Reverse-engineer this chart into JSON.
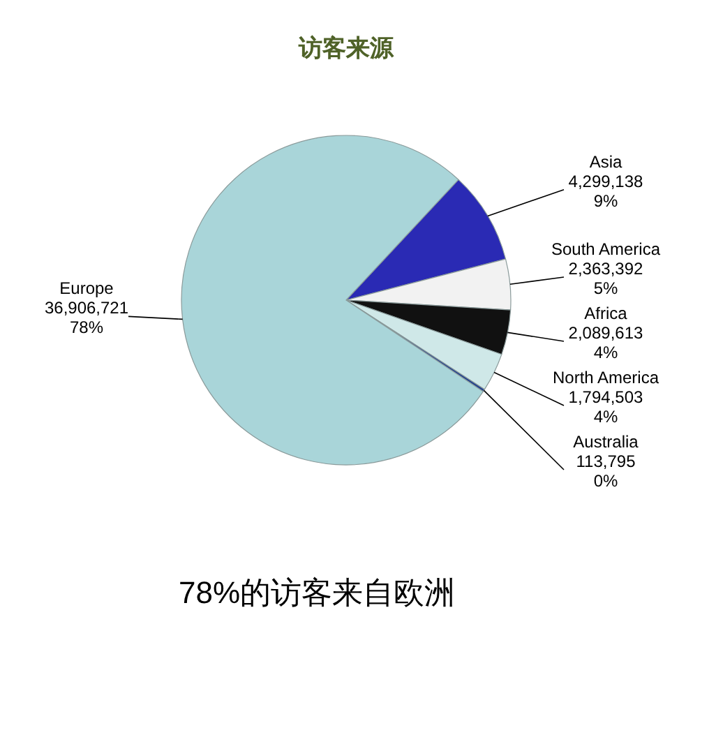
{
  "chart_data": {
    "type": "pie",
    "title": "访客来源",
    "categories": [
      "Asia",
      "South America",
      "Africa",
      "North America",
      "Australia",
      "Europe"
    ],
    "values": [
      4299138,
      2363392,
      2089613,
      1794503,
      113795,
      36906721
    ],
    "value_labels": [
      "4,299,138\n9%",
      "2,363,392\n5%",
      "2,089,613\n4%",
      "1,794,503\n4%",
      "113,795\n0%",
      "36,906,721\n78%"
    ],
    "colors": [
      "#2a2ab4",
      "#f2f2f2",
      "#111111",
      "#cfe8e8",
      "#1f3f8f",
      "#a9d5d9"
    ],
    "annotations": [
      "78%的访客来自欧洲"
    ]
  }
}
